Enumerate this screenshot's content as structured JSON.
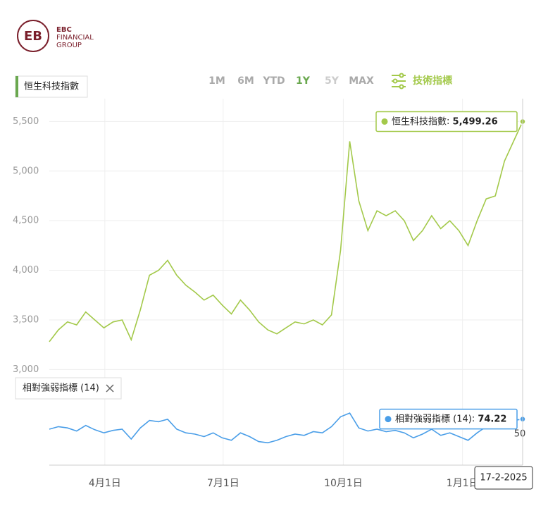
{
  "logo": {
    "lines": [
      "EBC",
      "FINANCIAL",
      "GROUP"
    ]
  },
  "toolbar": {
    "ranges": [
      "1M",
      "6M",
      "YTD",
      "1Y",
      "5Y",
      "MAX"
    ],
    "active": "1Y",
    "indicators": "技術指標"
  },
  "crosshair_date": "17-2-2025",
  "chart_data": [
    {
      "type": "line",
      "series": [
        {
          "name": "恒生科技指數",
          "color": "#a3c94a",
          "values": [
            3280,
            3400,
            3480,
            3450,
            3580,
            3500,
            3420,
            3480,
            3500,
            3300,
            3600,
            3950,
            4000,
            4100,
            3950,
            3850,
            3780,
            3700,
            3750,
            3650,
            3560,
            3700,
            3600,
            3480,
            3400,
            3360,
            3420,
            3480,
            3460,
            3500,
            3450,
            3550,
            4200,
            5300,
            4700,
            4400,
            4600,
            4550,
            4600,
            4500,
            4300,
            4400,
            4550,
            4420,
            4500,
            4400,
            4250,
            4500,
            4720,
            4750,
            5100,
            5300,
            5499.26
          ]
        }
      ],
      "last_value_label": "5,499.26",
      "xlim": [
        0,
        52
      ],
      "xticks": [
        {
          "value": 6.1,
          "label": "4月1日"
        },
        {
          "value": 19.1,
          "label": "7月1日"
        },
        {
          "value": 32.3,
          "label": "10月1日"
        },
        {
          "value": 45.4,
          "label": "1月1日"
        }
      ],
      "ylim": [
        2960,
        5730
      ],
      "yticks": [
        {
          "value": 3000,
          "label": "3,000"
        },
        {
          "value": 3500,
          "label": "3,500"
        },
        {
          "value": 4000,
          "label": "4,000"
        },
        {
          "value": 4500,
          "label": "4,500"
        },
        {
          "value": 5000,
          "label": "5,000"
        },
        {
          "value": 5500,
          "label": "5,500"
        }
      ],
      "grid": true
    },
    {
      "type": "line",
      "series": [
        {
          "name": "相對強弱指標 (14)",
          "color": "#4a9ee8",
          "values": [
            58,
            62,
            60,
            55,
            64,
            57,
            52,
            56,
            58,
            42,
            60,
            72,
            70,
            74,
            58,
            52,
            50,
            46,
            52,
            44,
            40,
            52,
            46,
            38,
            36,
            40,
            46,
            50,
            48,
            54,
            52,
            62,
            78,
            84,
            60,
            55,
            58,
            54,
            56,
            52,
            44,
            50,
            58,
            48,
            52,
            46,
            40,
            52,
            62,
            60,
            70,
            72,
            74.22
          ]
        }
      ],
      "last_value_label": "74.22",
      "xlim": [
        0,
        52
      ],
      "ylim": [
        0,
        100
      ],
      "yticks": [
        50
      ]
    }
  ]
}
